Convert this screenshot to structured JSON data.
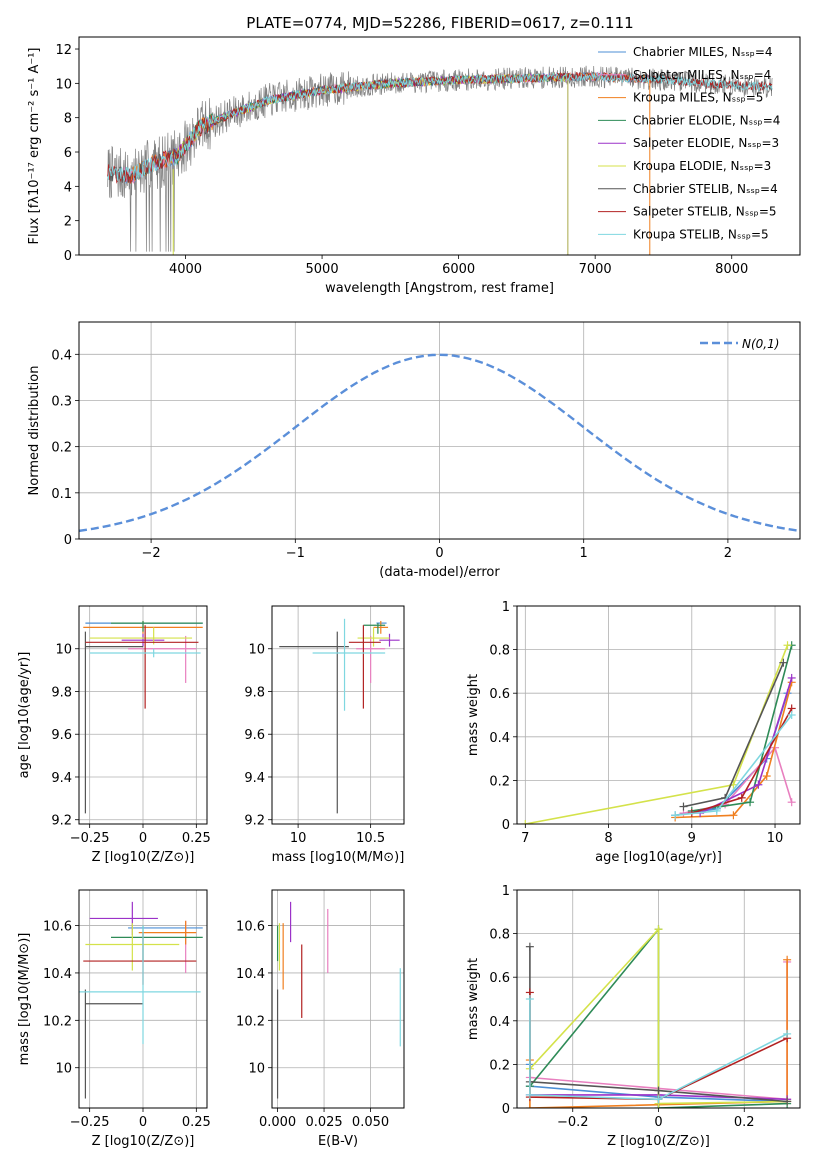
{
  "figure": {
    "title": "PLATE=0774, MJD=52286, FIBERID=0617, z=0.111"
  },
  "colors": {
    "Chabrier MILES": "#4c8fd6",
    "Salpeter MILES": "#e87fbf",
    "Kroupa MILES": "#f07f1f",
    "Chabrier ELODIE": "#2e8b57",
    "Salpeter ELODIE": "#9b32c8",
    "Kroupa ELODIE": "#d4e24a",
    "Chabrier STELIB": "#555555",
    "Salpeter STELIB": "#b22222",
    "Kroupa STELIB": "#7fd7e0",
    "normal": "#5b8fd9",
    "grid": "#b0b0b0"
  },
  "chart_data": [
    {
      "id": "spectrum",
      "type": "line",
      "xlabel": "wavelength [Angstrom, rest frame]",
      "ylabel": "Flux [fλ10⁻¹⁷ erg cm⁻² s⁻¹ A⁻¹]",
      "xlim": [
        3220,
        8500
      ],
      "ylim": [
        0,
        12.7
      ],
      "xticks": [
        4000,
        5000,
        6000,
        7000,
        8000
      ],
      "yticks": [
        0,
        2,
        4,
        6,
        8,
        10,
        12
      ],
      "grid": false,
      "legend_position": "right",
      "legend": [
        "Chabrier MILES, N_SSP=4",
        "Salpeter MILES, N_SSP=4",
        "Kroupa MILES, N_SSP=5",
        "Chabrier ELODIE, N_SSP=4",
        "Salpeter ELODIE, N_SSP=3",
        "Kroupa ELODIE, N_SSP=3",
        "Chabrier STELIB, N_SSP=4",
        "Salpeter STELIB, N_SSP=5",
        "Kroupa STELIB, N_SSP=5"
      ],
      "continuum": [
        [
          3430,
          4.8
        ],
        [
          3600,
          4.6
        ],
        [
          3750,
          5.3
        ],
        [
          3950,
          5.8
        ],
        [
          4100,
          7.4
        ],
        [
          4300,
          8.1
        ],
        [
          4600,
          9.0
        ],
        [
          5000,
          9.6
        ],
        [
          5500,
          10.0
        ],
        [
          6000,
          10.2
        ],
        [
          6500,
          10.3
        ],
        [
          7000,
          10.4
        ],
        [
          7500,
          10.2
        ],
        [
          8000,
          9.9
        ],
        [
          8300,
          9.8
        ]
      ],
      "data_range": [
        3430,
        8300
      ],
      "miles_range": [
        3540,
        7400
      ],
      "elodie_range": [
        3900,
        6800
      ]
    },
    {
      "id": "residuals",
      "type": "histogram",
      "xlabel": "(data-model)/error",
      "ylabel": "Normed distribution",
      "xlim": [
        -2.5,
        2.5
      ],
      "ylim": [
        0,
        0.47
      ],
      "xticks": [
        -2,
        -1,
        0,
        1,
        2
      ],
      "yticks": [
        0.0,
        0.1,
        0.2,
        0.3,
        0.4
      ],
      "grid": true,
      "legend_position": "top-right",
      "legend": [
        "N(0,1)"
      ],
      "bin_width": 0.1
    },
    {
      "id": "age-vs-Z",
      "type": "scatter",
      "xlabel": "Z [log10(Z/Z⊙)]",
      "ylabel": "age  [log10(age/yr)]",
      "xlim": [
        -0.3,
        0.3
      ],
      "ylim": [
        9.18,
        10.2
      ],
      "xticks": [
        -0.25,
        0.0,
        0.25
      ],
      "yticks": [
        9.2,
        9.4,
        9.6,
        9.8,
        10.0
      ],
      "grid": true,
      "points": [
        {
          "model": "Chabrier MILES",
          "x": 0.0,
          "y": 10.12,
          "xerr": [
            0.27,
            0.28
          ],
          "yerr": [
            0.0,
            0.0
          ]
        },
        {
          "model": "Salpeter MILES",
          "x": 0.2,
          "y": 10.0,
          "xerr": [
            0.27,
            0.05
          ],
          "yerr": [
            0.16,
            0.06
          ]
        },
        {
          "model": "Kroupa MILES",
          "x": 0.0,
          "y": 10.1,
          "xerr": [
            0.28,
            0.28
          ],
          "yerr": [
            0.03,
            0.03
          ]
        },
        {
          "model": "Chabrier ELODIE",
          "x": 0.0,
          "y": 10.12,
          "xerr": [
            0.15,
            0.28
          ],
          "yerr": [
            0.04,
            0.01
          ]
        },
        {
          "model": "Salpeter ELODIE",
          "x": 0.0,
          "y": 10.04,
          "xerr": [
            0.1,
            0.1
          ],
          "yerr": [
            0.03,
            0.03
          ]
        },
        {
          "model": "Kroupa ELODIE",
          "x": 0.05,
          "y": 10.05,
          "xerr": [
            0.3,
            0.18
          ],
          "yerr": [
            0.03,
            0.05
          ]
        },
        {
          "model": "Chabrier STELIB",
          "x": -0.27,
          "y": 10.01,
          "xerr": [
            0.0,
            0.27
          ],
          "yerr": [
            0.78,
            0.07
          ]
        },
        {
          "model": "Salpeter STELIB",
          "x": 0.01,
          "y": 10.03,
          "xerr": [
            0.28,
            0.25
          ],
          "yerr": [
            0.31,
            0.08
          ]
        },
        {
          "model": "Kroupa STELIB",
          "x": 0.05,
          "y": 9.98,
          "xerr": [
            0.3,
            0.22
          ],
          "yerr": [
            0.02,
            0.02
          ]
        }
      ]
    },
    {
      "id": "age-vs-mass",
      "type": "scatter",
      "xlabel": "mass [log10(M/M⊙)]",
      "ylabel": "",
      "xlim": [
        9.82,
        10.73
      ],
      "ylim": [
        9.18,
        10.2
      ],
      "xticks": [
        10.0,
        10.5
      ],
      "yticks": [
        9.2,
        9.4,
        9.6,
        9.8,
        10.0
      ],
      "grid": true,
      "points": [
        {
          "model": "Chabrier MILES",
          "x": 10.6,
          "y": 10.12,
          "xerr": [
            0.06,
            0.01
          ],
          "yerr": [
            0.0,
            0.0
          ]
        },
        {
          "model": "Salpeter MILES",
          "x": 10.5,
          "y": 10.0,
          "xerr": [
            0.1,
            0.1
          ],
          "yerr": [
            0.16,
            0.06
          ]
        },
        {
          "model": "Kroupa MILES",
          "x": 10.57,
          "y": 10.1,
          "xerr": [
            0.05,
            0.05
          ],
          "yerr": [
            0.03,
            0.03
          ]
        },
        {
          "model": "Chabrier ELODIE",
          "x": 10.55,
          "y": 10.11,
          "xerr": [
            0.1,
            0.05
          ],
          "yerr": [
            0.04,
            0.01
          ]
        },
        {
          "model": "Salpeter ELODIE",
          "x": 10.63,
          "y": 10.04,
          "xerr": [
            0.07,
            0.07
          ],
          "yerr": [
            0.03,
            0.03
          ]
        },
        {
          "model": "Kroupa ELODIE",
          "x": 10.52,
          "y": 10.05,
          "xerr": [
            0.11,
            0.11
          ],
          "yerr": [
            0.04,
            0.05
          ]
        },
        {
          "model": "Chabrier STELIB",
          "x": 10.27,
          "y": 10.01,
          "xerr": [
            0.4,
            0.08
          ],
          "yerr": [
            0.78,
            0.07
          ]
        },
        {
          "model": "Salpeter STELIB",
          "x": 10.45,
          "y": 10.03,
          "xerr": [
            0.1,
            0.12
          ],
          "yerr": [
            0.31,
            0.08
          ]
        },
        {
          "model": "Kroupa STELIB",
          "x": 10.32,
          "y": 9.98,
          "xerr": [
            0.22,
            0.28
          ],
          "yerr": [
            0.27,
            0.16
          ]
        }
      ]
    },
    {
      "id": "massweight-vs-age",
      "type": "line",
      "xlabel": "age  [log10(age/yr)]",
      "ylabel": "mass weight",
      "xlim": [
        6.9,
        10.3
      ],
      "ylim": [
        0,
        1.0
      ],
      "xticks": [
        7,
        8,
        9,
        10
      ],
      "yticks": [
        0.0,
        0.2,
        0.4,
        0.6,
        0.8,
        1.0
      ],
      "grid": true,
      "series": [
        {
          "model": "Chabrier MILES",
          "x": [
            8.8,
            9.3,
            9.9,
            10.15
          ],
          "y": [
            0.04,
            0.07,
            0.3,
            0.6
          ]
        },
        {
          "model": "Salpeter MILES",
          "x": [
            8.9,
            9.4,
            10.0,
            10.2
          ],
          "y": [
            0.05,
            0.09,
            0.35,
            0.1
          ]
        },
        {
          "model": "Kroupa MILES",
          "x": [
            8.8,
            9.5,
            9.9,
            10.2
          ],
          "y": [
            0.03,
            0.04,
            0.22,
            0.65
          ]
        },
        {
          "model": "Chabrier ELODIE",
          "x": [
            9.0,
            9.7,
            10.2
          ],
          "y": [
            0.06,
            0.1,
            0.82
          ]
        },
        {
          "model": "Salpeter ELODIE",
          "x": [
            9.1,
            9.8,
            10.2
          ],
          "y": [
            0.05,
            0.18,
            0.67
          ]
        },
        {
          "model": "Kroupa ELODIE",
          "x": [
            7.0,
            9.5,
            10.15
          ],
          "y": [
            0.0,
            0.18,
            0.82
          ]
        },
        {
          "model": "Chabrier STELIB",
          "x": [
            8.9,
            9.4,
            10.1
          ],
          "y": [
            0.08,
            0.12,
            0.74
          ]
        },
        {
          "model": "Salpeter STELIB",
          "x": [
            9.0,
            9.6,
            10.2
          ],
          "y": [
            0.05,
            0.12,
            0.53
          ]
        },
        {
          "model": "Kroupa STELIB",
          "x": [
            8.8,
            9.3,
            10.2
          ],
          "y": [
            0.04,
            0.06,
            0.5
          ]
        }
      ]
    },
    {
      "id": "mass-vs-Z",
      "type": "scatter",
      "xlabel": "Z [log10(Z/Z⊙)]",
      "ylabel": "mass [log10(M/M⊙)]",
      "xlim": [
        -0.3,
        0.3
      ],
      "ylim": [
        9.83,
        10.75
      ],
      "xticks": [
        -0.25,
        0.0,
        0.25
      ],
      "yticks": [
        10.0,
        10.2,
        10.4,
        10.6
      ],
      "grid": true,
      "points": [
        {
          "model": "Chabrier MILES",
          "x": 0.2,
          "y": 10.59,
          "xerr": [
            0.27,
            0.08
          ],
          "yerr": [
            0.0,
            0.0
          ]
        },
        {
          "model": "Salpeter MILES",
          "x": 0.2,
          "y": 10.52,
          "xerr": [
            0.0,
            0.0
          ],
          "yerr": [
            0.12,
            0.1
          ]
        },
        {
          "model": "Kroupa MILES",
          "x": 0.2,
          "y": 10.57,
          "xerr": [
            0.22,
            0.05
          ],
          "yerr": [
            0.05,
            0.05
          ]
        },
        {
          "model": "Chabrier ELODIE",
          "x": 0.0,
          "y": 10.55,
          "xerr": [
            0.15,
            0.28
          ],
          "yerr": [
            0.1,
            0.05
          ]
        },
        {
          "model": "Salpeter ELODIE",
          "x": -0.05,
          "y": 10.63,
          "xerr": [
            0.2,
            0.12
          ],
          "yerr": [
            0.07,
            0.07
          ]
        },
        {
          "model": "Kroupa ELODIE",
          "x": -0.05,
          "y": 10.52,
          "xerr": [
            0.22,
            0.22
          ],
          "yerr": [
            0.11,
            0.09
          ]
        },
        {
          "model": "Chabrier STELIB",
          "x": -0.27,
          "y": 10.27,
          "xerr": [
            0.0,
            0.27
          ],
          "yerr": [
            0.4,
            0.06
          ]
        },
        {
          "model": "Salpeter STELIB",
          "x": 0.0,
          "y": 10.45,
          "xerr": [
            0.28,
            0.25
          ],
          "yerr": [
            0.1,
            0.12
          ]
        },
        {
          "model": "Kroupa STELIB",
          "x": 0.0,
          "y": 10.32,
          "xerr": [
            0.3,
            0.27
          ],
          "yerr": [
            0.22,
            0.28
          ]
        }
      ]
    },
    {
      "id": "mass-vs-EBV",
      "type": "scatter",
      "xlabel": "E(B-V)",
      "ylabel": "",
      "xlim": [
        -0.003,
        0.068
      ],
      "ylim": [
        9.83,
        10.75
      ],
      "xticks": [
        0.0,
        0.025,
        0.05
      ],
      "xticklabels": [
        "0.000",
        "0.025",
        "0.050"
      ],
      "yticks": [
        10.0,
        10.2,
        10.4,
        10.6
      ],
      "grid": true,
      "points": [
        {
          "model": "Chabrier MILES",
          "x": 0.0,
          "y": 10.6,
          "xerr": [
            0,
            0
          ],
          "yerr": [
            0.0,
            0.0
          ]
        },
        {
          "model": "Salpeter MILES",
          "x": 0.027,
          "y": 10.53,
          "xerr": [
            0,
            0
          ],
          "yerr": [
            0.13,
            0.14
          ]
        },
        {
          "model": "Kroupa MILES",
          "x": 0.003,
          "y": 10.47,
          "xerr": [
            0,
            0
          ],
          "yerr": [
            0.14,
            0.14
          ]
        },
        {
          "model": "Chabrier ELODIE",
          "x": 0.0,
          "y": 10.55,
          "xerr": [
            0,
            0
          ],
          "yerr": [
            0.1,
            0.05
          ]
        },
        {
          "model": "Salpeter ELODIE",
          "x": 0.007,
          "y": 10.6,
          "xerr": [
            0,
            0
          ],
          "yerr": [
            0.07,
            0.1
          ]
        },
        {
          "model": "Kroupa ELODIE",
          "x": 0.001,
          "y": 10.5,
          "xerr": [
            0,
            0
          ],
          "yerr": [
            0.09,
            0.11
          ]
        },
        {
          "model": "Chabrier STELIB",
          "x": 0.0,
          "y": 10.1,
          "xerr": [
            0,
            0
          ],
          "yerr": [
            0.23,
            0.23
          ]
        },
        {
          "model": "Salpeter STELIB",
          "x": 0.013,
          "y": 10.37,
          "xerr": [
            0,
            0
          ],
          "yerr": [
            0.16,
            0.15
          ]
        },
        {
          "model": "Kroupa STELIB",
          "x": 0.066,
          "y": 10.26,
          "xerr": [
            0,
            0
          ],
          "yerr": [
            0.17,
            0.16
          ]
        }
      ]
    },
    {
      "id": "massweight-vs-Z",
      "type": "line",
      "xlabel": "Z [log10(Z/Z⊙)]",
      "ylabel": "mass weight",
      "xlim": [
        -0.33,
        0.33
      ],
      "ylim": [
        0,
        1.0
      ],
      "xticks": [
        -0.2,
        0.0,
        0.2
      ],
      "yticks": [
        0.0,
        0.2,
        0.4,
        0.6,
        0.8,
        1.0
      ],
      "grid": true,
      "series": [
        {
          "model": "Chabrier MILES",
          "x": [
            -0.3,
            -0.3,
            0.0,
            0.3
          ],
          "y": [
            0.2,
            0.1,
            0.05,
            0.03
          ]
        },
        {
          "model": "Salpeter MILES",
          "x": [
            -0.3,
            0.3,
            0.3
          ],
          "y": [
            0.14,
            0.04,
            0.67
          ]
        },
        {
          "model": "Kroupa MILES",
          "x": [
            -0.3,
            -0.3,
            0.3,
            0.3
          ],
          "y": [
            0.22,
            0.0,
            0.03,
            0.68
          ]
        },
        {
          "model": "Chabrier ELODIE",
          "x": [
            -0.3,
            0.0,
            0.0,
            0.3
          ],
          "y": [
            0.1,
            0.82,
            0.0,
            0.02
          ]
        },
        {
          "model": "Salpeter ELODIE",
          "x": [
            -0.3,
            0.0,
            0.3
          ],
          "y": [
            0.06,
            0.06,
            0.04
          ]
        },
        {
          "model": "Kroupa ELODIE",
          "x": [
            -0.3,
            0.0,
            0.0,
            0.3
          ],
          "y": [
            0.18,
            0.82,
            0.02,
            0.03
          ]
        },
        {
          "model": "Chabrier STELIB",
          "x": [
            -0.3,
            -0.3,
            0.0,
            0.3
          ],
          "y": [
            0.74,
            0.12,
            0.08,
            0.03
          ]
        },
        {
          "model": "Salpeter STELIB",
          "x": [
            -0.3,
            -0.3,
            0.0,
            0.3
          ],
          "y": [
            0.53,
            0.05,
            0.04,
            0.32
          ]
        },
        {
          "model": "Kroupa STELIB",
          "x": [
            -0.3,
            -0.3,
            0.0,
            0.3
          ],
          "y": [
            0.5,
            0.06,
            0.04,
            0.34
          ]
        }
      ]
    }
  ]
}
